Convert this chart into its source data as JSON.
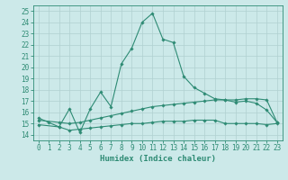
{
  "main_line_x": [
    0,
    1,
    2,
    3,
    4,
    5,
    6,
    7,
    8,
    9,
    10,
    11,
    12,
    13,
    14,
    15,
    16,
    17,
    18,
    19,
    20,
    21,
    22,
    23
  ],
  "main_line_y": [
    15.5,
    15.1,
    14.7,
    16.3,
    14.2,
    16.3,
    17.8,
    16.5,
    20.3,
    21.7,
    24.0,
    24.8,
    22.5,
    22.2,
    19.2,
    18.2,
    17.7,
    17.2,
    17.1,
    16.9,
    17.0,
    16.8,
    16.2,
    15.1
  ],
  "line2_x": [
    0,
    2,
    3,
    4,
    5,
    6,
    7,
    8,
    9,
    10,
    11,
    12,
    13,
    14,
    15,
    16,
    17,
    18,
    19,
    20,
    21,
    22,
    23
  ],
  "line2_y": [
    15.3,
    15.1,
    15.0,
    15.1,
    15.3,
    15.5,
    15.7,
    15.9,
    16.1,
    16.3,
    16.5,
    16.6,
    16.7,
    16.8,
    16.9,
    17.0,
    17.1,
    17.1,
    17.1,
    17.2,
    17.2,
    17.1,
    15.1
  ],
  "line3_x": [
    0,
    2,
    3,
    4,
    5,
    6,
    7,
    8,
    9,
    10,
    11,
    12,
    13,
    14,
    15,
    16,
    17,
    18,
    19,
    20,
    21,
    22,
    23
  ],
  "line3_y": [
    14.9,
    14.7,
    14.4,
    14.5,
    14.6,
    14.7,
    14.8,
    14.9,
    15.0,
    15.0,
    15.1,
    15.2,
    15.2,
    15.2,
    15.3,
    15.3,
    15.3,
    15.0,
    15.0,
    15.0,
    15.0,
    14.9,
    15.0
  ],
  "line_color": "#2e8b74",
  "background_color": "#cce9e9",
  "grid_color": "#b0d0d0",
  "xlim": [
    -0.5,
    23.5
  ],
  "ylim": [
    13.5,
    25.5
  ],
  "yticks": [
    14,
    15,
    16,
    17,
    18,
    19,
    20,
    21,
    22,
    23,
    24,
    25
  ],
  "xticks": [
    0,
    1,
    2,
    3,
    4,
    5,
    6,
    7,
    8,
    9,
    10,
    11,
    12,
    13,
    14,
    15,
    16,
    17,
    18,
    19,
    20,
    21,
    22,
    23
  ],
  "xlabel": "Humidex (Indice chaleur)",
  "xlabel_fontsize": 6.5,
  "tick_fontsize": 5.5,
  "marker": "D",
  "marker_size": 1.8,
  "linewidth": 0.8
}
